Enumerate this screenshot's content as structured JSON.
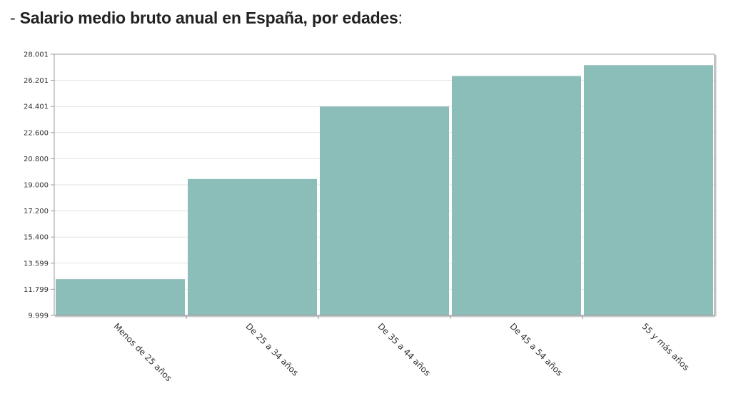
{
  "heading": {
    "prefix": "- ",
    "title": "Salario medio bruto anual en España, por edades",
    "suffix": ":"
  },
  "chart_data": {
    "type": "bar",
    "categories": [
      "Menos de 25 años",
      "De 25 a 34 años",
      "De 35 a 44 años",
      "De 45 a 54 años",
      "55 y más años"
    ],
    "values": [
      12500,
      19400,
      24400,
      26500,
      27250
    ],
    "yticks": [
      "9.999",
      "11.799",
      "13.599",
      "15.400",
      "17.200",
      "19.000",
      "20.800",
      "22.600",
      "24.401",
      "26.201",
      "28.001"
    ],
    "ylim": [
      9999,
      28001
    ],
    "grid": true,
    "legend": "none",
    "colors": {
      "bar": "#8bbdb9",
      "grid": "#e3e3e3",
      "frame": "#999999"
    }
  }
}
